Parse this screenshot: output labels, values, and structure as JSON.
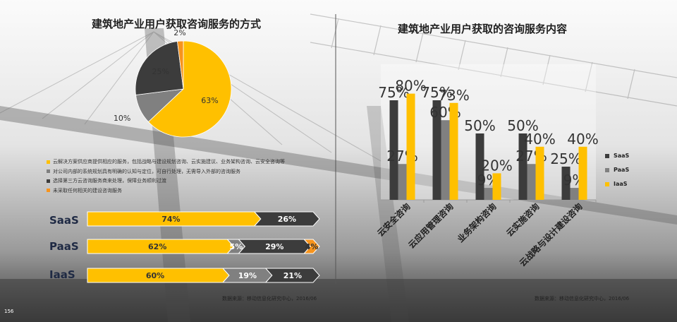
{
  "page_number": "156",
  "colors": {
    "yellow": "#FFC000",
    "dark": "#3C3C3C",
    "gray": "#808080",
    "orange": "#F7941D",
    "light": "#E6E6E6"
  },
  "left": {
    "title": "建筑地产业用户获取咨询服务的方式",
    "pie": {
      "slices": [
        {
          "label": "63%",
          "value": 63,
          "color": "#FFC000"
        },
        {
          "label": "10%",
          "value": 10,
          "color": "#808080"
        },
        {
          "label": "25%",
          "value": 25,
          "color": "#3C3C3C"
        },
        {
          "label": "2%",
          "value": 2,
          "color": "#F7941D"
        }
      ]
    },
    "legend": [
      {
        "text": "云解决方案供应商提供相应的服务，包括战略与建设规划咨询、云实施建议、业务架构咨询、云安全咨询等",
        "color": "#FFC000"
      },
      {
        "text": "对公司内部的系统规划具有明确的认知与定位，可自行处理，无需导入外部的咨询服务",
        "color": "#808080"
      },
      {
        "text": "选择第三方云咨询服务商来处理，保障业务顺利过渡",
        "color": "#3C3C3C"
      },
      {
        "text": "未采取任何相关的建设咨询服务",
        "color": "#F7941D"
      }
    ],
    "stacked": [
      {
        "name": "SaaS",
        "segments": [
          {
            "label": "74%",
            "value": 74,
            "color": "#FFC000",
            "text_color": "#333333"
          },
          {
            "label": "26%",
            "value": 26,
            "color": "#3C3C3C",
            "text_color": "#FFFFFF"
          }
        ]
      },
      {
        "name": "PaaS",
        "segments": [
          {
            "label": "62%",
            "value": 62,
            "color": "#FFC000",
            "text_color": "#333333"
          },
          {
            "label": "5%",
            "value": 5,
            "color": "#808080",
            "text_color": "#FFFFFF"
          },
          {
            "label": "29%",
            "value": 29,
            "color": "#3C3C3C",
            "text_color": "#FFFFFF"
          },
          {
            "label": "4%",
            "value": 4,
            "color": "#F7941D",
            "text_color": "#333333"
          }
        ]
      },
      {
        "name": "IaaS",
        "segments": [
          {
            "label": "60%",
            "value": 60,
            "color": "#FFC000",
            "text_color": "#333333"
          },
          {
            "label": "19%",
            "value": 19,
            "color": "#808080",
            "text_color": "#FFFFFF"
          },
          {
            "label": "21%",
            "value": 21,
            "color": "#3C3C3C",
            "text_color": "#FFFFFF"
          }
        ]
      }
    ],
    "source": "数据来源：移动信息化研究中心，2016/06"
  },
  "right": {
    "title": "建筑地产业用户获取的咨询服务内容",
    "source": "数据来源：移动信息化研究中心，2016/06",
    "legend": [
      "SaaS",
      "PaaS",
      "IaaS"
    ]
  },
  "chart_data": [
    {
      "type": "pie",
      "title": "建筑地产业用户获取咨询服务的方式",
      "labels": [
        "云解决方案供应商提供相应的服务，包括战略与建设规划咨询、云实施建议、业务架构咨询、云安全咨询等",
        "对公司内部的系统规划具有明确的认知与定位，可自行处理，无需导入外部的咨询服务",
        "选择第三方云咨询服务商来处理，保障业务顺利过渡",
        "未采取任何相关的建设咨询服务"
      ],
      "values": [
        63,
        10,
        25,
        2
      ]
    },
    {
      "type": "bar",
      "stacked": true,
      "orientation": "horizontal",
      "categories": [
        "SaaS",
        "PaaS",
        "IaaS"
      ],
      "series": [
        {
          "values": [
            74,
            62,
            60
          ]
        },
        {
          "values": [
            0,
            5,
            19
          ]
        },
        {
          "values": [
            26,
            29,
            21
          ]
        },
        {
          "values": [
            0,
            4,
            0
          ]
        }
      ]
    },
    {
      "type": "bar",
      "title": "建筑地产业用户获取的咨询服务内容",
      "categories": [
        "云安全咨询",
        "云应用管理咨询",
        "业务架构咨询",
        "云实施咨询",
        "云战略与设计建设咨询"
      ],
      "series": [
        {
          "name": "SaaS",
          "color": "#3C3C3C",
          "values": [
            75,
            75,
            50,
            50,
            25
          ]
        },
        {
          "name": "PaaS",
          "color": "#808080",
          "values": [
            27,
            60,
            9,
            27,
            9
          ]
        },
        {
          "name": "IaaS",
          "color": "#FFC000",
          "values": [
            80,
            73,
            20,
            40,
            40
          ]
        }
      ],
      "ylim": [
        0,
        100
      ],
      "legend": "right"
    }
  ]
}
